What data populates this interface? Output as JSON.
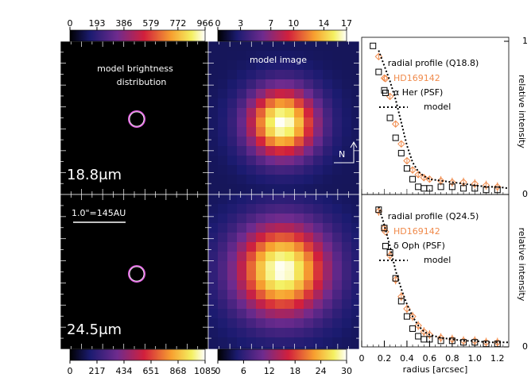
{
  "chart_data": [
    {
      "type": "image",
      "title_lines": [
        "model brightness",
        "distribution"
      ],
      "label": "18.8μm",
      "colorbar": {
        "lim": [
          0,
          966
        ],
        "ticks": [
          0,
          193,
          386,
          579,
          772,
          966
        ]
      }
    },
    {
      "type": "image",
      "title": "model image",
      "north": "N",
      "colorbar": {
        "lim": [
          0,
          17
        ],
        "ticks": [
          0,
          3,
          7,
          10,
          14,
          17
        ]
      }
    },
    {
      "type": "line",
      "title": "radial profile (Q18.8)",
      "ylabel": "relative intensity",
      "xlim": [
        0,
        1.3
      ],
      "ylim": [
        0,
        1
      ],
      "yticks": [
        0,
        1
      ],
      "series": [
        {
          "name": "HD169142",
          "color": "#f08a4b",
          "marker": "diamond",
          "x": [
            0.15,
            0.2,
            0.25,
            0.3,
            0.35,
            0.4,
            0.45,
            0.5,
            0.55,
            0.6,
            0.7,
            0.8,
            0.9,
            1.0,
            1.1,
            1.2
          ],
          "values": [
            0.9,
            0.76,
            0.64,
            0.46,
            0.33,
            0.22,
            0.16,
            0.13,
            0.11,
            0.1,
            0.09,
            0.08,
            0.08,
            0.07,
            0.06,
            0.05
          ],
          "errors": [
            0.02,
            0.02,
            0.02,
            0.02,
            0.02,
            0.02,
            0.02,
            0.02,
            0.02,
            0.02,
            0.03,
            0.03,
            0.03,
            0.03,
            0.03,
            0.03
          ]
        },
        {
          "name": "α Her (PSF)",
          "color": "#000000",
          "marker": "square",
          "x": [
            0.1,
            0.15,
            0.2,
            0.25,
            0.3,
            0.35,
            0.4,
            0.45,
            0.5,
            0.55,
            0.6,
            0.7,
            0.8,
            0.9,
            1.0,
            1.1,
            1.2
          ],
          "values": [
            0.97,
            0.8,
            0.68,
            0.5,
            0.37,
            0.27,
            0.17,
            0.1,
            0.05,
            0.04,
            0.04,
            0.05,
            0.05,
            0.04,
            0.04,
            0.03,
            0.03
          ]
        },
        {
          "name": "model",
          "color": "#000000",
          "marker": "dotted",
          "x": [
            0.15,
            0.2,
            0.25,
            0.3,
            0.35,
            0.4,
            0.45,
            0.5,
            0.55,
            0.6,
            0.7,
            0.8,
            0.9,
            1.0,
            1.1,
            1.2,
            1.3
          ],
          "values": [
            0.94,
            0.84,
            0.74,
            0.62,
            0.47,
            0.32,
            0.21,
            0.15,
            0.12,
            0.1,
            0.09,
            0.08,
            0.07,
            0.06,
            0.05,
            0.05,
            0.04
          ]
        }
      ]
    },
    {
      "type": "image",
      "label": "24.5μm",
      "scale_bar": "1.0\"=145AU",
      "colorbar": {
        "lim": [
          0,
          1085
        ],
        "ticks": [
          0,
          217,
          434,
          651,
          868,
          1085
        ]
      }
    },
    {
      "type": "image",
      "colorbar": {
        "lim": [
          0,
          30
        ],
        "ticks": [
          0,
          6,
          12,
          18,
          24,
          30
        ]
      }
    },
    {
      "type": "line",
      "title": "radial profile (Q24.5)",
      "ylabel": "relative intensity",
      "xlabel": "radius [arcsec]",
      "xlim": [
        0,
        1.3
      ],
      "ylim": [
        0,
        1
      ],
      "yticks": [
        0
      ],
      "xticks": [
        0,
        0.2,
        0.4,
        0.6,
        0.8,
        {
          "value": 1,
          "label": "1.0"
        },
        1.2
      ],
      "series": [
        {
          "name": "HD169142",
          "color": "#f08a4b",
          "marker": "diamond",
          "x": [
            0.15,
            0.2,
            0.25,
            0.3,
            0.35,
            0.4,
            0.45,
            0.5,
            0.55,
            0.6,
            0.7,
            0.8,
            0.9,
            1.0,
            1.1,
            1.2
          ],
          "values": [
            0.89,
            0.78,
            0.6,
            0.44,
            0.33,
            0.25,
            0.2,
            0.14,
            0.1,
            0.08,
            0.06,
            0.05,
            0.04,
            0.04,
            0.03,
            0.03
          ],
          "errors": [
            0.03,
            0.03,
            0.03,
            0.03,
            0.03,
            0.03,
            0.03,
            0.03,
            0.03,
            0.03,
            0.03,
            0.03,
            0.03,
            0.03,
            0.03,
            0.03
          ]
        },
        {
          "name": "δ Oph (PSF)",
          "color": "#000000",
          "marker": "square",
          "x": [
            0.15,
            0.2,
            0.25,
            0.3,
            0.35,
            0.4,
            0.45,
            0.5,
            0.55,
            0.6,
            0.7,
            0.8,
            0.9,
            1.0,
            1.1,
            1.2
          ],
          "values": [
            0.9,
            0.78,
            0.62,
            0.45,
            0.3,
            0.2,
            0.12,
            0.07,
            0.05,
            0.05,
            0.04,
            0.04,
            0.03,
            0.03,
            0.02,
            0.02
          ]
        },
        {
          "name": "model",
          "color": "#000000",
          "marker": "dotted",
          "x": [
            0.15,
            0.2,
            0.25,
            0.3,
            0.35,
            0.4,
            0.45,
            0.5,
            0.55,
            0.6,
            0.7,
            0.8,
            0.9,
            1.0,
            1.1,
            1.2,
            1.3
          ],
          "values": [
            0.92,
            0.8,
            0.66,
            0.5,
            0.38,
            0.28,
            0.2,
            0.14,
            0.1,
            0.08,
            0.06,
            0.05,
            0.04,
            0.04,
            0.03,
            0.03,
            0.03
          ]
        }
      ]
    }
  ]
}
